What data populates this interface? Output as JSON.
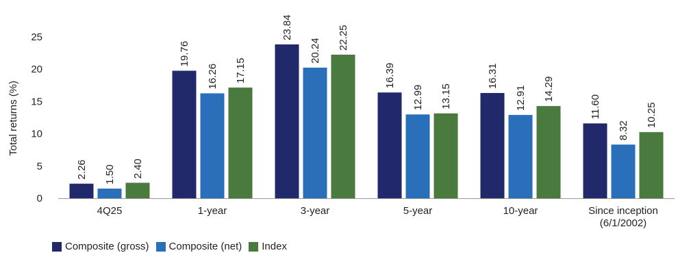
{
  "chart_data": {
    "type": "bar",
    "ylabel": "Total returns (%)",
    "ylim": [
      0,
      25
    ],
    "yticks": [
      "0",
      "5",
      "10",
      "15",
      "20",
      "25"
    ],
    "grid": false,
    "legend_position": "bottom-left",
    "categories": [
      [
        "4Q25"
      ],
      [
        "1-year"
      ],
      [
        "3-year"
      ],
      [
        "5-year"
      ],
      [
        "10-year"
      ],
      [
        "Since inception",
        "(6/1/2002)"
      ]
    ],
    "series": [
      {
        "name": "Composite (gross)",
        "color": "#22296a",
        "values": [
          2.26,
          19.76,
          23.84,
          16.39,
          16.31,
          11.6
        ],
        "labels": [
          "2.26",
          "19.76",
          "23.84",
          "16.39",
          "16.31",
          "11.60"
        ]
      },
      {
        "name": "Composite (net)",
        "color": "#2a6fba",
        "values": [
          1.5,
          16.26,
          20.24,
          12.99,
          12.91,
          8.32
        ],
        "labels": [
          "1.50",
          "16.26",
          "20.24",
          "12.99",
          "12.91",
          "8.32"
        ]
      },
      {
        "name": "Index",
        "color": "#4a7a3d",
        "values": [
          2.4,
          17.15,
          22.25,
          13.15,
          14.29,
          10.25
        ],
        "labels": [
          "2.40",
          "17.15",
          "22.25",
          "13.15",
          "14.29",
          "10.25"
        ]
      }
    ]
  }
}
